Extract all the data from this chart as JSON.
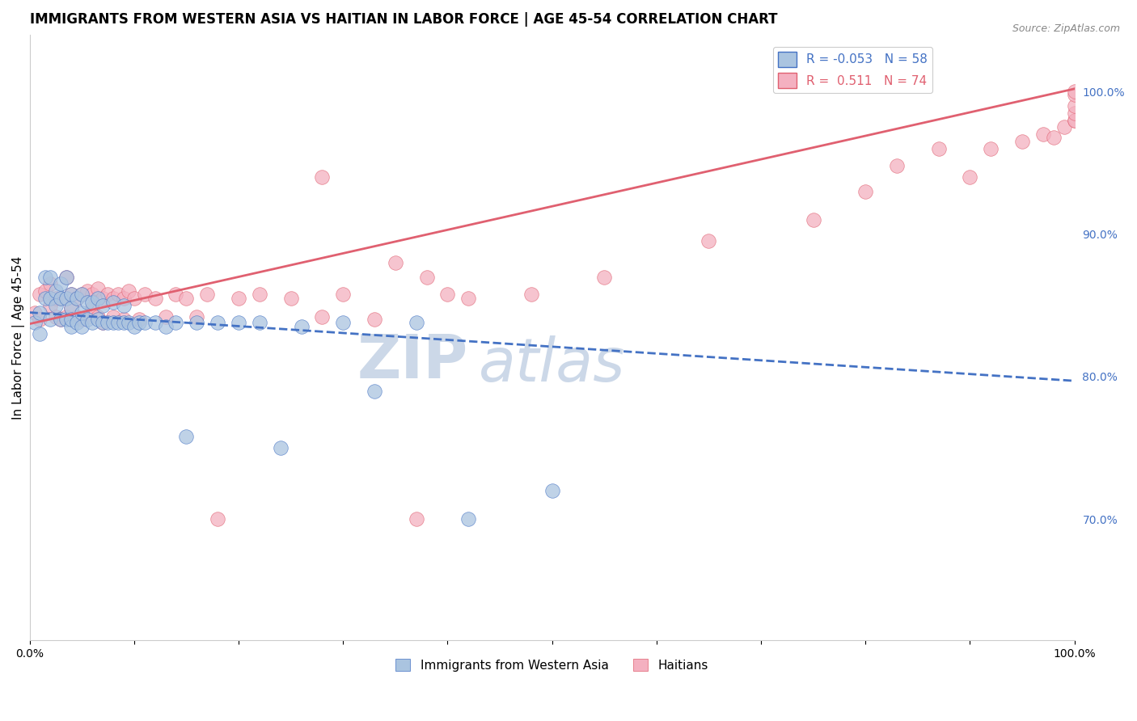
{
  "title": "IMMIGRANTS FROM WESTERN ASIA VS HAITIAN IN LABOR FORCE | AGE 45-54 CORRELATION CHART",
  "source": "Source: ZipAtlas.com",
  "ylabel": "In Labor Force | Age 45-54",
  "legend_blue_r": "R = -0.053",
  "legend_blue_n": "N = 58",
  "legend_pink_r": "R =  0.511",
  "legend_pink_n": "N = 74",
  "legend_blue_label": "Immigrants from Western Asia",
  "legend_pink_label": "Haitians",
  "blue_color": "#aac4e0",
  "blue_line_color": "#4472c4",
  "pink_color": "#f4b0c0",
  "pink_line_color": "#e06070",
  "right_yticks": [
    0.7,
    0.8,
    0.9,
    1.0
  ],
  "right_ytick_labels": [
    "70.0%",
    "80.0%",
    "90.0%",
    "100.0%"
  ],
  "xlim": [
    0.0,
    1.0
  ],
  "ylim": [
    0.615,
    1.04
  ],
  "blue_trend_x0": 0.0,
  "blue_trend_y0": 0.845,
  "blue_trend_x1": 1.0,
  "blue_trend_y1": 0.797,
  "pink_trend_x0": 0.0,
  "pink_trend_y0": 0.837,
  "pink_trend_x1": 1.0,
  "pink_trend_y1": 1.002,
  "blue_scatter_x": [
    0.005,
    0.01,
    0.01,
    0.015,
    0.015,
    0.02,
    0.02,
    0.02,
    0.025,
    0.025,
    0.03,
    0.03,
    0.03,
    0.035,
    0.035,
    0.035,
    0.04,
    0.04,
    0.04,
    0.04,
    0.045,
    0.045,
    0.05,
    0.05,
    0.05,
    0.055,
    0.055,
    0.06,
    0.06,
    0.065,
    0.065,
    0.07,
    0.07,
    0.075,
    0.08,
    0.08,
    0.085,
    0.09,
    0.09,
    0.095,
    0.1,
    0.105,
    0.11,
    0.12,
    0.13,
    0.14,
    0.15,
    0.16,
    0.18,
    0.2,
    0.22,
    0.24,
    0.26,
    0.3,
    0.33,
    0.37,
    0.42,
    0.5
  ],
  "blue_scatter_y": [
    0.838,
    0.845,
    0.83,
    0.87,
    0.855,
    0.855,
    0.84,
    0.87,
    0.85,
    0.86,
    0.84,
    0.855,
    0.865,
    0.84,
    0.855,
    0.87,
    0.835,
    0.848,
    0.858,
    0.84,
    0.838,
    0.855,
    0.835,
    0.845,
    0.858,
    0.84,
    0.852,
    0.838,
    0.852,
    0.84,
    0.855,
    0.838,
    0.85,
    0.838,
    0.838,
    0.852,
    0.838,
    0.838,
    0.85,
    0.838,
    0.835,
    0.838,
    0.838,
    0.838,
    0.835,
    0.838,
    0.758,
    0.838,
    0.838,
    0.838,
    0.838,
    0.75,
    0.835,
    0.838,
    0.79,
    0.838,
    0.7,
    0.72
  ],
  "pink_scatter_x": [
    0.005,
    0.01,
    0.01,
    0.015,
    0.02,
    0.02,
    0.025,
    0.025,
    0.03,
    0.03,
    0.035,
    0.035,
    0.04,
    0.04,
    0.045,
    0.045,
    0.05,
    0.05,
    0.055,
    0.055,
    0.06,
    0.06,
    0.065,
    0.065,
    0.07,
    0.07,
    0.075,
    0.08,
    0.08,
    0.085,
    0.09,
    0.09,
    0.095,
    0.1,
    0.105,
    0.11,
    0.12,
    0.13,
    0.14,
    0.15,
    0.16,
    0.17,
    0.18,
    0.2,
    0.22,
    0.25,
    0.28,
    0.3,
    0.33,
    0.37,
    0.42,
    0.48,
    0.55,
    0.65,
    0.75,
    0.8,
    0.83,
    0.87,
    0.9,
    0.92,
    0.95,
    0.97,
    0.98,
    0.99,
    1.0,
    1.0,
    1.0,
    1.0,
    1.0,
    1.0,
    0.35,
    0.4,
    0.28,
    0.38
  ],
  "pink_scatter_y": [
    0.845,
    0.84,
    0.858,
    0.86,
    0.85,
    0.865,
    0.842,
    0.855,
    0.855,
    0.84,
    0.87,
    0.842,
    0.858,
    0.848,
    0.855,
    0.842,
    0.858,
    0.84,
    0.86,
    0.842,
    0.858,
    0.848,
    0.862,
    0.842,
    0.855,
    0.838,
    0.858,
    0.855,
    0.842,
    0.858,
    0.855,
    0.84,
    0.86,
    0.855,
    0.84,
    0.858,
    0.855,
    0.842,
    0.858,
    0.855,
    0.842,
    0.858,
    0.7,
    0.855,
    0.858,
    0.855,
    0.842,
    0.858,
    0.84,
    0.7,
    0.855,
    0.858,
    0.87,
    0.895,
    0.91,
    0.93,
    0.948,
    0.96,
    0.94,
    0.96,
    0.965,
    0.97,
    0.968,
    0.975,
    0.98,
    0.98,
    0.985,
    0.99,
    0.998,
    1.0,
    0.88,
    0.858,
    0.94,
    0.87
  ],
  "watermark_zip": "ZIP",
  "watermark_atlas": "atlas",
  "watermark_color": "#ccd8e8",
  "grid_color": "#e8e8e8",
  "background_color": "#ffffff",
  "title_fontsize": 12,
  "axis_label_fontsize": 11,
  "tick_fontsize": 10,
  "legend_fontsize": 11,
  "right_axis_color": "#4472c4"
}
